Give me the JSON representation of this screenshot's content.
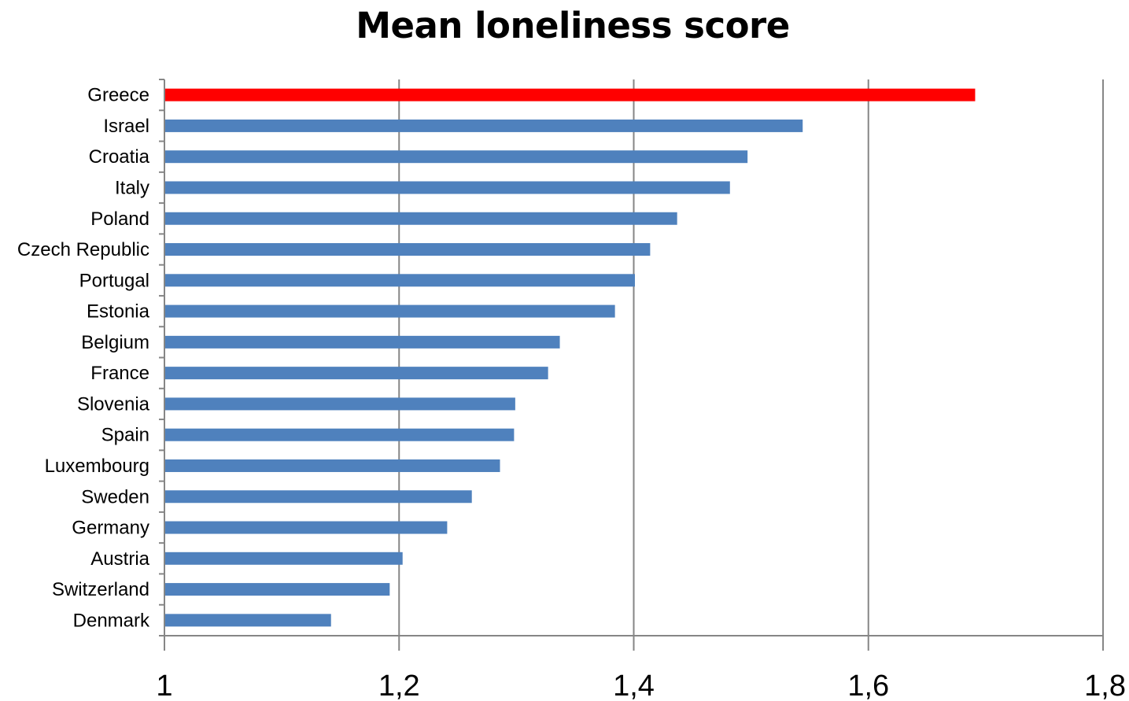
{
  "chart_data": {
    "type": "bar",
    "orientation": "horizontal",
    "title": "Mean loneliness score",
    "xlabel": "",
    "ylabel": "",
    "xlim": [
      1,
      1.8
    ],
    "x_ticks": [
      1,
      1.2,
      1.4,
      1.6,
      1.8
    ],
    "x_tick_labels": [
      "1",
      "1,2",
      "1,4",
      "1,6",
      "1,8"
    ],
    "grid": "vertical",
    "legend": "none",
    "categories": [
      "Greece",
      "Israel",
      "Croatia",
      "Italy",
      "Poland",
      "Czech Republic",
      "Portugal",
      "Estonia",
      "Belgium",
      "France",
      "Slovenia",
      "Spain",
      "Luxembourg",
      "Sweden",
      "Germany",
      "Austria",
      "Switzerland",
      "Denmark"
    ],
    "values": [
      1.691,
      1.544,
      1.497,
      1.482,
      1.437,
      1.414,
      1.401,
      1.384,
      1.337,
      1.327,
      1.299,
      1.298,
      1.286,
      1.262,
      1.241,
      1.203,
      1.192,
      1.142
    ],
    "colors": {
      "highlight": "#ff0000",
      "default": "#4f81bd",
      "grid": "#868686",
      "axis": "#868686"
    },
    "highlight_category": "Greece"
  }
}
